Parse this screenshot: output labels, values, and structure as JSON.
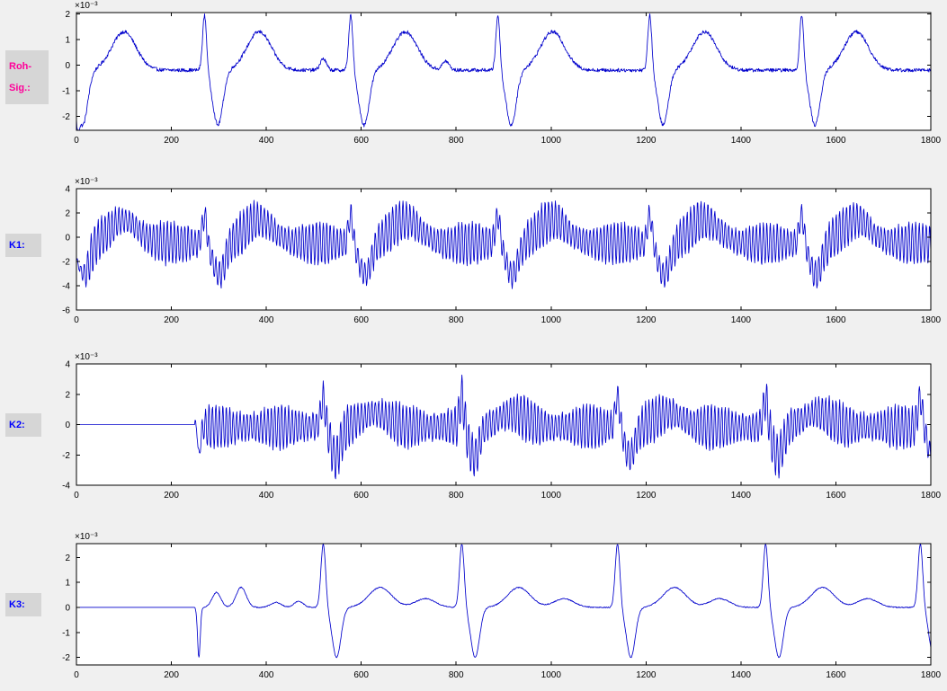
{
  "figure": {
    "background": "#f0f0f0",
    "axes_background": "#ffffff",
    "axis_color": "#000000",
    "tick_label_color": "#000000",
    "line_color": "#0000cc"
  },
  "side_labels": [
    {
      "lines": [
        "Roh-",
        "Sig.:"
      ],
      "color": "#ff0099"
    },
    {
      "lines": [
        "K1:"
      ],
      "color": "#0000ff"
    },
    {
      "lines": [
        "K2:"
      ],
      "color": "#0000ff"
    },
    {
      "lines": [
        "K3:"
      ],
      "color": "#0000ff"
    }
  ],
  "chart_data": [
    {
      "type": "line",
      "name": "roh_sig",
      "label": "Roh-Sig.:",
      "y_unit": "×10⁻³",
      "y_unit_multiplier": 0.001,
      "x_range": [
        0,
        1800
      ],
      "y_range": [
        -2.55,
        2.05
      ],
      "x_ticks": [
        0,
        200,
        400,
        600,
        800,
        1000,
        1200,
        1400,
        1600,
        1800
      ],
      "y_ticks": [
        -2,
        -1,
        0,
        1,
        2
      ],
      "grid": false,
      "line_color": "#0000cc",
      "signal": {
        "baseline": -0.2,
        "noise": 0.07,
        "start": null,
        "beats": [
          -15,
          270,
          578,
          888,
          1208,
          1528
        ],
        "components": [
          {
            "amp": 2.2,
            "offset": 0,
            "width": 6
          },
          {
            "amp": -2.15,
            "offset": 28,
            "width": 15
          },
          {
            "amp": 1.5,
            "offset": 115,
            "width": 36
          }
        ],
        "extras": [
          {
            "x": 2,
            "amp": -1.1,
            "width": 5
          },
          {
            "x": 520,
            "amp": 0.45,
            "width": 9
          },
          {
            "x": 778,
            "amp": 0.35,
            "width": 10
          }
        ],
        "hf": null
      }
    },
    {
      "type": "line",
      "name": "k1",
      "label": "K1:",
      "y_unit": "×10⁻³",
      "y_unit_multiplier": 0.001,
      "x_range": [
        0,
        1800
      ],
      "y_range": [
        -6,
        4
      ],
      "x_ticks": [
        0,
        200,
        400,
        600,
        800,
        1000,
        1200,
        1400,
        1600,
        1800
      ],
      "y_ticks": [
        -6,
        -4,
        -2,
        0,
        2,
        4
      ],
      "grid": false,
      "line_color": "#0000cc",
      "signal": {
        "baseline": -0.5,
        "noise": 0.18,
        "start": null,
        "beats": [
          -15,
          270,
          578,
          888,
          1208,
          1528
        ],
        "components": [
          {
            "amp": 2.4,
            "offset": 0,
            "width": 7
          },
          {
            "amp": -2.6,
            "offset": 30,
            "width": 18
          },
          {
            "amp": 1.9,
            "offset": 115,
            "width": 42
          }
        ],
        "extras": [],
        "hf": {
          "amp": 1.35,
          "period": 7.3,
          "am": 0.3,
          "am_period": 157,
          "ramp": 30
        }
      }
    },
    {
      "type": "line",
      "name": "k2",
      "label": "K2:",
      "y_unit": "×10⁻³",
      "y_unit_multiplier": 0.001,
      "x_range": [
        0,
        1800
      ],
      "y_range": [
        -4,
        4
      ],
      "x_ticks": [
        0,
        200,
        400,
        600,
        800,
        1000,
        1200,
        1400,
        1600,
        1800
      ],
      "y_ticks": [
        -4,
        -2,
        0,
        2,
        4
      ],
      "grid": false,
      "line_color": "#0000cc",
      "signal": {
        "baseline": -0.15,
        "noise": 0.15,
        "start": 250,
        "beats": [
          520,
          812,
          1140,
          1452,
          1778
        ],
        "components": [
          {
            "amp": 1.95,
            "offset": 0,
            "width": 7
          },
          {
            "amp": -2.0,
            "offset": 26,
            "width": 15
          },
          {
            "amp": 0.9,
            "offset": 108,
            "width": 40
          }
        ],
        "extras": [
          {
            "x": 252,
            "amp": 0.6,
            "width": 4
          },
          {
            "x": 258,
            "amp": -1.8,
            "width": 5
          }
        ],
        "hf": {
          "amp": 1.15,
          "period": 7.3,
          "am": 0.28,
          "am_period": 131,
          "ramp": 25
        }
      }
    },
    {
      "type": "line",
      "name": "k3",
      "label": "K3:",
      "y_unit": "×10⁻³",
      "y_unit_multiplier": 0.001,
      "x_range": [
        0,
        1800
      ],
      "y_range": [
        -2.3,
        2.55
      ],
      "x_ticks": [
        0,
        200,
        400,
        600,
        800,
        1000,
        1200,
        1400,
        1600,
        1800
      ],
      "y_ticks": [
        -2,
        -1,
        0,
        1,
        2
      ],
      "grid": false,
      "line_color": "#0000cc",
      "signal": {
        "baseline": 0,
        "noise": 0.02,
        "start": 250,
        "beats": [
          520,
          812,
          1140,
          1452,
          1778
        ],
        "components": [
          {
            "amp": 2.55,
            "offset": 0,
            "width": 7
          },
          {
            "amp": -2.0,
            "offset": 28,
            "width": 13
          },
          {
            "amp": 0.8,
            "offset": 120,
            "width": 34
          },
          {
            "amp": 0.35,
            "offset": 215,
            "width": 30
          }
        ],
        "extras": [
          {
            "x": 258,
            "amp": -2.0,
            "width": 4
          },
          {
            "x": 295,
            "amp": 0.6,
            "width": 13
          },
          {
            "x": 347,
            "amp": 0.8,
            "width": 15
          },
          {
            "x": 420,
            "amp": 0.2,
            "width": 16
          },
          {
            "x": 468,
            "amp": 0.25,
            "width": 14
          }
        ],
        "hf": null
      }
    }
  ]
}
